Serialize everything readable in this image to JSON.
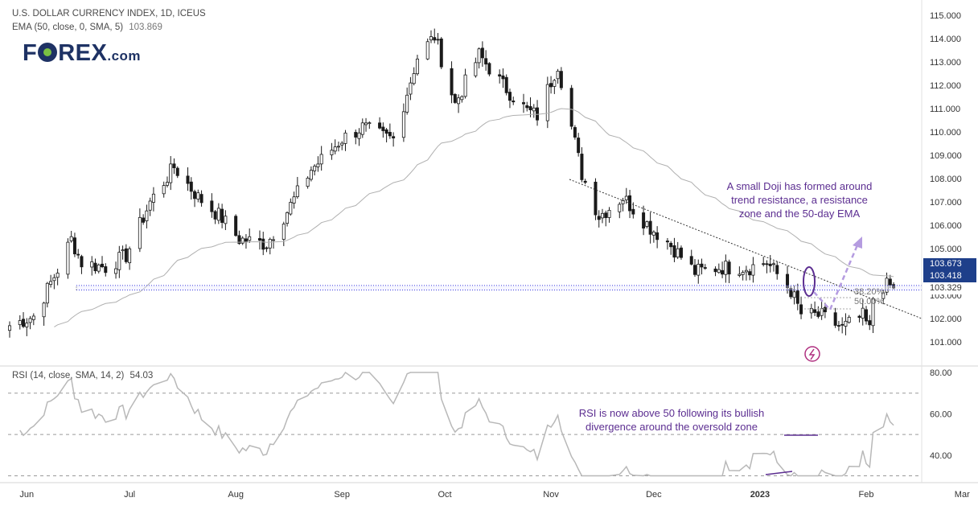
{
  "header": {
    "title": "U.S. DOLLAR CURRENCY INDEX, 1D, ICEUS",
    "ema_label": "EMA (50, close, 0, SMA, 5)",
    "ema_value": "103.869",
    "rsi_label": "RSI (14, close, SMA, 14, 2)",
    "rsi_value": "54.03"
  },
  "logo": {
    "brand_left": "F",
    "brand_right": "REX",
    "domain": ".com"
  },
  "annotations": {
    "doji_text": [
      "A small Doji has formed around",
      "trend resistance, a resistance",
      "zone and the 50-day EMA"
    ],
    "rsi_text": [
      "RSI is now above 50 following its bullish",
      "divergence around the oversold zone"
    ],
    "fib_382": "38.20%",
    "fib_50": "50.00%"
  },
  "price_tags": {
    "last": "103.673",
    "zone_top": "103.418",
    "zone_bottom": "103.329"
  },
  "colors": {
    "up": "#1a1a1a",
    "down": "#1a1a1a",
    "ema": "#b0b0b0",
    "rsi": "#b8b8b8",
    "annotation": "#5c2e91",
    "projection": "#b59ce0",
    "zone": "#3a3ae0",
    "tag_bg": "#1e3f8a"
  },
  "chart_data": [
    {
      "type": "candlestick",
      "title": "U.S. DOLLAR CURRENCY INDEX, 1D, ICEUS",
      "ylim": [
        100.0,
        115.5
      ],
      "y_ticks": [
        "115.000",
        "114.000",
        "113.000",
        "112.000",
        "111.000",
        "110.000",
        "109.000",
        "108.000",
        "107.000",
        "106.000",
        "105.000",
        "104.000",
        "103.000",
        "102.000",
        "101.000"
      ],
      "x_ticks": [
        "Jun",
        "Jul",
        "Aug",
        "Sep",
        "Oct",
        "Nov",
        "Dec",
        "2023",
        "Feb",
        "Mar"
      ],
      "close_anchors": [
        [
          "2022-05-27",
          101.7
        ],
        [
          "2022-06-03",
          102.1
        ],
        [
          "2022-06-10",
          104.1
        ],
        [
          "2022-06-14",
          105.4
        ],
        [
          "2022-06-17",
          104.4
        ],
        [
          "2022-06-24",
          104.2
        ],
        [
          "2022-06-30",
          104.7
        ],
        [
          "2022-07-07",
          107.0
        ],
        [
          "2022-07-14",
          108.5
        ],
        [
          "2022-07-21",
          107.2
        ],
        [
          "2022-07-28",
          106.3
        ],
        [
          "2022-08-02",
          105.4
        ],
        [
          "2022-08-10",
          105.2
        ],
        [
          "2022-08-16",
          106.6
        ],
        [
          "2022-08-23",
          108.4
        ],
        [
          "2022-08-26",
          108.8
        ],
        [
          "2022-09-01",
          109.7
        ],
        [
          "2022-09-07",
          110.2
        ],
        [
          "2022-09-13",
          109.8
        ],
        [
          "2022-09-16",
          109.7
        ],
        [
          "2022-09-23",
          113.2
        ],
        [
          "2022-09-28",
          114.1
        ],
        [
          "2022-10-04",
          111.2
        ],
        [
          "2022-10-11",
          113.3
        ],
        [
          "2022-10-18",
          112.0
        ],
        [
          "2022-10-25",
          110.9
        ],
        [
          "2022-10-28",
          110.7
        ],
        [
          "2022-11-03",
          112.9
        ],
        [
          "2022-11-10",
          108.2
        ],
        [
          "2022-11-15",
          106.4
        ],
        [
          "2022-11-22",
          107.2
        ],
        [
          "2022-11-30",
          105.9
        ],
        [
          "2022-12-05",
          105.3
        ],
        [
          "2022-12-13",
          104.0
        ],
        [
          "2022-12-20",
          104.2
        ],
        [
          "2022-12-29",
          104.2
        ],
        [
          "2023-01-03",
          104.4
        ],
        [
          "2023-01-06",
          103.9
        ],
        [
          "2023-01-10",
          103.2
        ],
        [
          "2023-01-13",
          102.2
        ],
        [
          "2023-01-19",
          102.1
        ],
        [
          "2023-01-25",
          101.6
        ],
        [
          "2023-01-31",
          102.1
        ],
        [
          "2023-02-02",
          101.5
        ],
        [
          "2023-02-03",
          102.9
        ],
        [
          "2023-02-06",
          103.4
        ],
        [
          "2023-02-08",
          103.4
        ],
        [
          "2023-02-09",
          103.2
        ]
      ],
      "series": [
        {
          "name": "EMA (50, close, 0, SMA, 5)",
          "last": 103.869
        }
      ],
      "levels": {
        "resistance_zone": [
          103.329,
          103.418
        ],
        "last_price": 103.673
      }
    },
    {
      "type": "line",
      "title": "RSI (14, close, SMA, 14, 2)",
      "ylim": [
        27.0,
        82.0
      ],
      "y_ticks": [
        "80.00",
        "60.00",
        "40.00"
      ],
      "reference_lines": [
        70,
        50,
        30
      ],
      "last": 54.03
    }
  ]
}
